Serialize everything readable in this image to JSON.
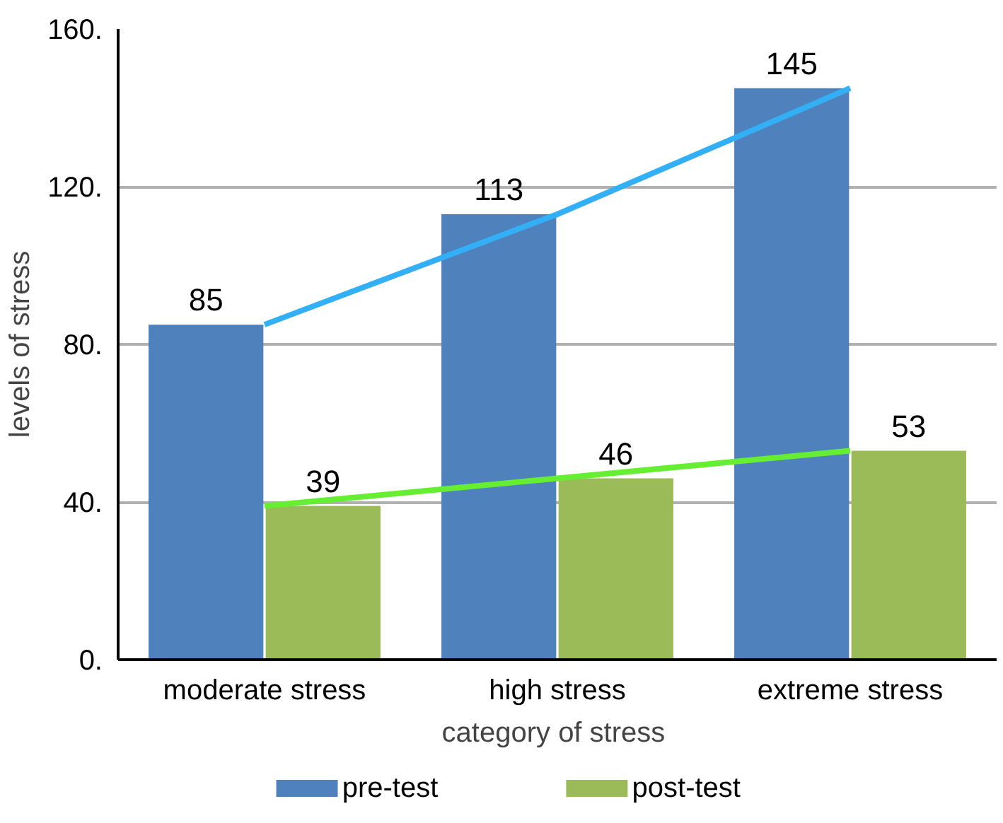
{
  "chart_data": {
    "type": "bar",
    "xlabel": "category  of stress",
    "ylabel": "levels of stress",
    "categories": [
      "moderate stress",
      "high stress",
      "extreme stress"
    ],
    "series": [
      {
        "name": "pre-test",
        "color": "#4f81bd",
        "values": [
          85,
          113,
          145
        ],
        "value_labels": [
          "85",
          "113",
          "145"
        ]
      },
      {
        "name": "post-test",
        "color": "#9bbb59",
        "values": [
          39,
          46,
          53
        ],
        "value_labels": [
          "39",
          "46",
          "53"
        ]
      },
      {
        "type": "line",
        "color": "#33b0f5",
        "values": [
          85,
          113,
          145
        ]
      },
      {
        "type": "line",
        "color": "#66ee33",
        "values": [
          39,
          46,
          53
        ]
      }
    ],
    "ylim": [
      0,
      160
    ],
    "yticks": [
      {
        "value": 0,
        "label": "0."
      },
      {
        "value": 40,
        "label": "40."
      },
      {
        "value": 80,
        "label": "80."
      },
      {
        "value": 120,
        "label": "120."
      },
      {
        "value": 160,
        "label": "160."
      }
    ],
    "grid": "y",
    "legend": "bottom",
    "line_style": "solid"
  }
}
